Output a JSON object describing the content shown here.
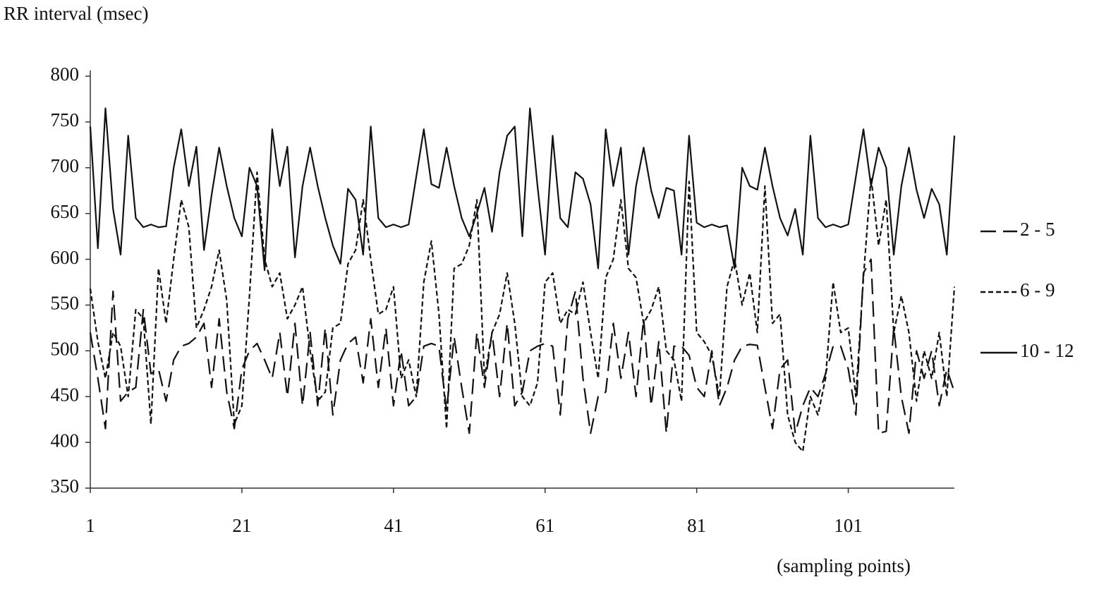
{
  "chart_data": {
    "type": "line",
    "y_label": "RR interval (msec)",
    "x_label": "(sampling points)",
    "x": [
      1,
      2,
      3,
      4,
      5,
      6,
      7,
      8,
      9,
      10,
      11,
      12,
      13,
      14,
      15,
      16,
      17,
      18,
      19,
      20,
      21,
      22,
      23,
      24,
      25,
      26,
      27,
      28,
      29,
      30,
      31,
      32,
      33,
      34,
      35,
      36,
      37,
      38,
      39,
      40,
      41,
      42,
      43,
      44,
      45,
      46,
      47,
      48,
      49,
      50,
      51,
      52,
      53,
      54,
      55,
      56,
      57,
      58,
      59,
      60,
      61,
      62,
      63,
      64,
      65,
      66,
      67,
      68,
      69,
      70,
      71,
      72,
      73,
      74,
      75,
      76,
      77,
      78,
      79,
      80,
      81,
      82,
      83,
      84,
      85,
      86,
      87,
      88,
      89,
      90,
      91,
      92,
      93,
      94,
      95,
      96,
      97,
      98,
      99,
      100,
      101,
      102,
      103,
      104,
      105,
      106,
      107,
      108,
      109,
      110,
      111,
      112,
      113,
      114,
      115
    ],
    "xlim": [
      1,
      115
    ],
    "xticks": [
      1,
      21,
      41,
      61,
      81,
      101
    ],
    "ylim": [
      350,
      800
    ],
    "yticks": [
      350,
      400,
      450,
      500,
      550,
      600,
      650,
      700,
      750,
      800
    ],
    "legend": "right",
    "series": [
      {
        "name": "2 - 5",
        "color": "#111111",
        "line_style": "dashed",
        "values": [
          520,
          470,
          415,
          565,
          445,
          455,
          460,
          545,
          475,
          480,
          445,
          490,
          505,
          508,
          515,
          530,
          460,
          535,
          455,
          415,
          480,
          500,
          508,
          490,
          470,
          520,
          450,
          530,
          440,
          520,
          440,
          525,
          430,
          490,
          508,
          515,
          465,
          535,
          460,
          525,
          440,
          500,
          440,
          450,
          505,
          508,
          505,
          435,
          515,
          460,
          410,
          520,
          460,
          520,
          450,
          530,
          440,
          455,
          500,
          505,
          508,
          505,
          430,
          535,
          565,
          470,
          410,
          450,
          455,
          530,
          470,
          520,
          450,
          535,
          440,
          510,
          410,
          505,
          505,
          495,
          460,
          450,
          500,
          440,
          460,
          490,
          505,
          507,
          506,
          460,
          415,
          480,
          490,
          410,
          440,
          460,
          450,
          475,
          505,
          505,
          480,
          430,
          585,
          600,
          410,
          412,
          525,
          450,
          410,
          500,
          470,
          500,
          440,
          480,
          455
        ]
      },
      {
        "name": "6 - 9",
        "color": "#111111",
        "line_style": "dotted",
        "values": [
          568,
          510,
          470,
          520,
          505,
          450,
          545,
          535,
          420,
          590,
          530,
          600,
          665,
          635,
          525,
          545,
          570,
          610,
          555,
          420,
          440,
          560,
          695,
          600,
          570,
          585,
          535,
          550,
          570,
          500,
          445,
          455,
          525,
          530,
          595,
          610,
          665,
          600,
          540,
          545,
          570,
          470,
          490,
          450,
          575,
          620,
          540,
          415,
          590,
          595,
          615,
          665,
          470,
          520,
          540,
          585,
          530,
          450,
          440,
          465,
          575,
          585,
          530,
          545,
          540,
          575,
          520,
          470,
          580,
          600,
          665,
          590,
          580,
          530,
          545,
          570,
          500,
          490,
          445,
          685,
          520,
          510,
          495,
          450,
          570,
          600,
          550,
          585,
          520,
          680,
          530,
          540,
          430,
          400,
          390,
          450,
          430,
          470,
          575,
          520,
          525,
          450,
          580,
          690,
          615,
          665,
          520,
          560,
          520,
          445,
          500,
          470,
          520,
          450,
          570
        ]
      },
      {
        "name": "10 - 12",
        "color": "#111111",
        "line_style": "solid",
        "values": [
          745,
          612,
          765,
          655,
          605,
          735,
          645,
          635,
          638,
          635,
          636,
          700,
          742,
          680,
          723,
          610,
          670,
          722,
          680,
          645,
          625,
          700,
          680,
          588,
          742,
          680,
          723,
          602,
          680,
          722,
          680,
          645,
          615,
          595,
          677,
          665,
          605,
          745,
          645,
          635,
          638,
          635,
          638,
          690,
          742,
          682,
          678,
          722,
          680,
          645,
          625,
          650,
          678,
          630,
          695,
          735,
          745,
          625,
          765,
          680,
          605,
          735,
          645,
          635,
          695,
          688,
          660,
          590,
          742,
          680,
          722,
          605,
          680,
          722,
          675,
          645,
          678,
          675,
          605,
          735,
          640,
          635,
          638,
          635,
          637,
          590,
          700,
          680,
          676,
          722,
          680,
          645,
          626,
          655,
          605,
          735,
          645,
          635,
          638,
          635,
          638,
          690,
          742,
          680,
          722,
          700,
          605,
          680,
          722,
          676,
          645,
          677,
          660,
          605,
          735
        ]
      }
    ]
  }
}
